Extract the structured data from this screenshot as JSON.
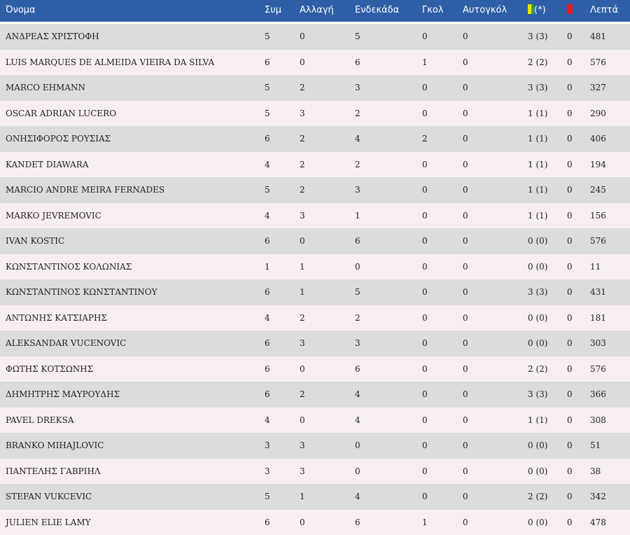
{
  "columns": {
    "name": "Όνομα",
    "apps": "Συμ",
    "subs": "Αλλαγή",
    "starts": "Ενδεκάδα",
    "goals": "Γκολ",
    "own_goals": "Αυτογκόλ",
    "yellow_suffix": "(*)",
    "minutes": "Λεπτά"
  },
  "icons": {
    "yellow_card": {
      "name": "yellow-card-icon",
      "colors": [
        "#f4e200",
        "#3aa23a"
      ]
    },
    "red_card": {
      "name": "red-card-icon",
      "color": "#e51b1b"
    }
  },
  "colors": {
    "header_bg": "#2e5ea6",
    "row_odd": "#dcdcdc",
    "row_even": "#f6eef0"
  },
  "players": [
    {
      "name": "ΑΝΔΡΕΑΣ ΧΡΙΣΤΟΦΗ",
      "apps": "5",
      "subs": "0",
      "starts": "5",
      "goals": "0",
      "own_goals": "0",
      "yellow": "3 (3)",
      "red": "0",
      "minutes": "481"
    },
    {
      "name": "LUIS MARQUES DE ALMEIDA VIEIRA DA SILVA",
      "apps": "6",
      "subs": "0",
      "starts": "6",
      "goals": "1",
      "own_goals": "0",
      "yellow": "2 (2)",
      "red": "0",
      "minutes": "576"
    },
    {
      "name": "MARCO EHMANN",
      "apps": "5",
      "subs": "2",
      "starts": "3",
      "goals": "0",
      "own_goals": "0",
      "yellow": "3 (3)",
      "red": "0",
      "minutes": "327"
    },
    {
      "name": "OSCAR ADRIAN LUCERO",
      "apps": "5",
      "subs": "3",
      "starts": "2",
      "goals": "0",
      "own_goals": "0",
      "yellow": "1 (1)",
      "red": "0",
      "minutes": "290"
    },
    {
      "name": "ΟΝΗΣΙΦΟΡΟΣ ΡΟΥΣΙΑΣ",
      "apps": "6",
      "subs": "2",
      "starts": "4",
      "goals": "2",
      "own_goals": "0",
      "yellow": "1 (1)",
      "red": "0",
      "minutes": "406"
    },
    {
      "name": "KANDET DIAWARA",
      "apps": "4",
      "subs": "2",
      "starts": "2",
      "goals": "0",
      "own_goals": "0",
      "yellow": "1 (1)",
      "red": "0",
      "minutes": "194"
    },
    {
      "name": "MARCIO ANDRE MEIRA FERNADES",
      "apps": "5",
      "subs": "2",
      "starts": "3",
      "goals": "0",
      "own_goals": "0",
      "yellow": "1 (1)",
      "red": "0",
      "minutes": "245"
    },
    {
      "name": "MARKO JEVREMOVIC",
      "apps": "4",
      "subs": "3",
      "starts": "1",
      "goals": "0",
      "own_goals": "0",
      "yellow": "1 (1)",
      "red": "0",
      "minutes": "156"
    },
    {
      "name": "IVAN KOSTIC",
      "apps": "6",
      "subs": "0",
      "starts": "6",
      "goals": "0",
      "own_goals": "0",
      "yellow": "0 (0)",
      "red": "0",
      "minutes": "576"
    },
    {
      "name": "ΚΩΝΣΤΑΝΤΙΝΟΣ ΚΟΛΩΝΙΑΣ",
      "apps": "1",
      "subs": "1",
      "starts": "0",
      "goals": "0",
      "own_goals": "0",
      "yellow": "0 (0)",
      "red": "0",
      "minutes": "11"
    },
    {
      "name": "ΚΩΝΣΤΑΝΤΙΝΟΣ ΚΩΝΣΤΑΝΤΙΝΟΥ",
      "apps": "6",
      "subs": "1",
      "starts": "5",
      "goals": "0",
      "own_goals": "0",
      "yellow": "3 (3)",
      "red": "0",
      "minutes": "431"
    },
    {
      "name": "ΑΝΤΩΝΗΣ ΚΑΤΣΙΑΡΗΣ",
      "apps": "4",
      "subs": "2",
      "starts": "2",
      "goals": "0",
      "own_goals": "0",
      "yellow": "0 (0)",
      "red": "0",
      "minutes": "181"
    },
    {
      "name": "ALEKSANDAR VUCENOVIC",
      "apps": "6",
      "subs": "3",
      "starts": "3",
      "goals": "0",
      "own_goals": "0",
      "yellow": "0 (0)",
      "red": "0",
      "minutes": "303"
    },
    {
      "name": "ΦΩΤΗΣ ΚΟΤΣΩΝΗΣ",
      "apps": "6",
      "subs": "0",
      "starts": "6",
      "goals": "0",
      "own_goals": "0",
      "yellow": "2 (2)",
      "red": "0",
      "minutes": "576"
    },
    {
      "name": "ΔΗΜΗΤΡΗΣ ΜΑΥΡΟΥΔΗΣ",
      "apps": "6",
      "subs": "2",
      "starts": "4",
      "goals": "0",
      "own_goals": "0",
      "yellow": "3 (3)",
      "red": "0",
      "minutes": "366"
    },
    {
      "name": "PAVEL DREKSA",
      "apps": "4",
      "subs": "0",
      "starts": "4",
      "goals": "0",
      "own_goals": "0",
      "yellow": "1 (1)",
      "red": "0",
      "minutes": "308"
    },
    {
      "name": "BRANKO MIHAJLOVIC",
      "apps": "3",
      "subs": "3",
      "starts": "0",
      "goals": "0",
      "own_goals": "0",
      "yellow": "0 (0)",
      "red": "0",
      "minutes": "51"
    },
    {
      "name": "ΠΑΝΤΕΛΗΣ ΓΑΒΡΙΗΛ",
      "apps": "3",
      "subs": "3",
      "starts": "0",
      "goals": "0",
      "own_goals": "0",
      "yellow": "0 (0)",
      "red": "0",
      "minutes": "38"
    },
    {
      "name": "STEFAN VUKCEVIC",
      "apps": "5",
      "subs": "1",
      "starts": "4",
      "goals": "0",
      "own_goals": "0",
      "yellow": "2 (2)",
      "red": "0",
      "minutes": "342"
    },
    {
      "name": "JULIEN ELIE LAMY",
      "apps": "6",
      "subs": "0",
      "starts": "6",
      "goals": "1",
      "own_goals": "0",
      "yellow": "0 (0)",
      "red": "0",
      "minutes": "478"
    }
  ]
}
